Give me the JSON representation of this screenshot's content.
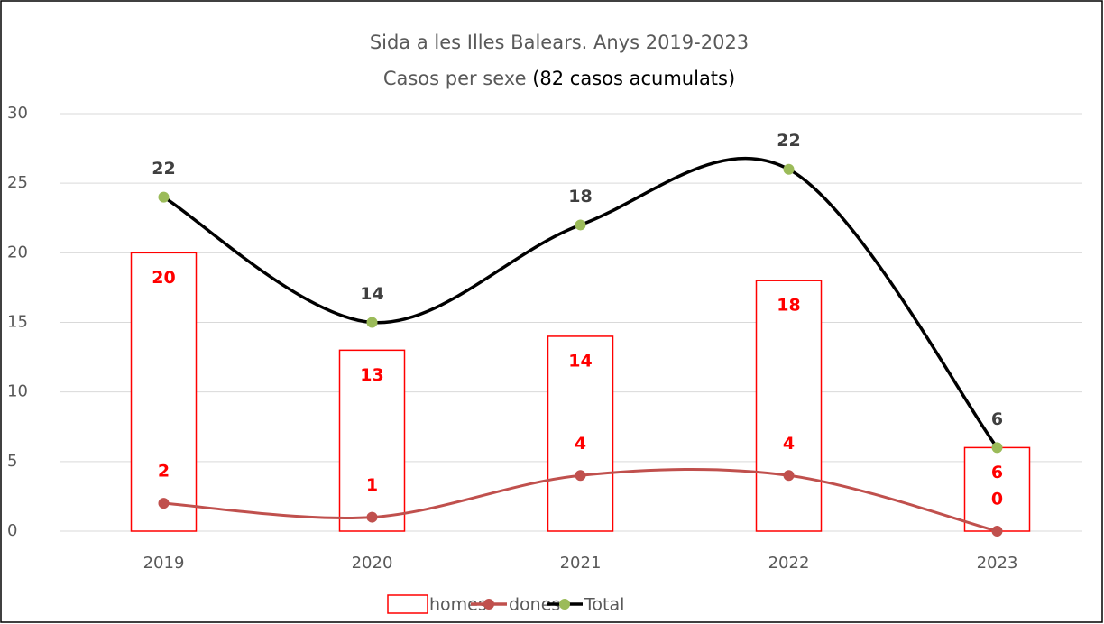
{
  "chart_data": {
    "type": "bar_line",
    "title": "Sida a les Illes Balears. Anys 2019-2023",
    "subtitle": "Casos per sexe",
    "subtitle_note": "(82 casos acumulats)",
    "categories": [
      "2019",
      "2020",
      "2021",
      "2022",
      "2023"
    ],
    "series": [
      {
        "name": "homes",
        "type": "bar",
        "color": "#ff0000",
        "values": [
          20,
          13,
          14,
          18,
          6
        ]
      },
      {
        "name": "dones",
        "type": "line",
        "color": "#c0504d",
        "values": [
          2,
          1,
          4,
          4,
          0
        ]
      },
      {
        "name": "Total",
        "type": "line",
        "color": "#000000",
        "marker_color": "#9bbb59",
        "stacked": true,
        "values": [
          22,
          14,
          18,
          22,
          6
        ]
      }
    ],
    "ylim": [
      0,
      30
    ],
    "yticks": [
      0,
      5,
      10,
      15,
      20,
      25,
      30
    ],
    "grid": true,
    "legend": "bottom"
  }
}
